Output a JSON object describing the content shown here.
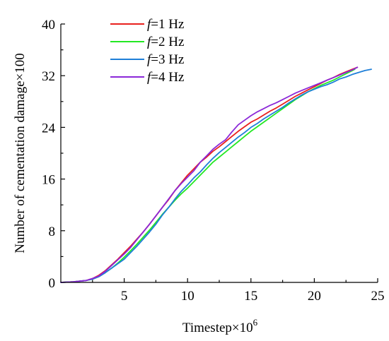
{
  "chart_data": {
    "type": "line",
    "xlabel": "Timestep×10",
    "xlabel_sup": "6",
    "ylabel": "Number of cementation damage×100",
    "xlim": [
      0,
      25
    ],
    "ylim": [
      0,
      40
    ],
    "xticks": [
      5,
      10,
      15,
      20,
      25
    ],
    "yticks": [
      0,
      8,
      16,
      24,
      32,
      40
    ],
    "grid": false,
    "legend_position": "top-left",
    "series": [
      {
        "name": "f=1 Hz",
        "legend_var": "f",
        "legend_rest": "=1 Hz",
        "color": "#e8201e",
        "x": [
          0,
          1,
          2,
          2.5,
          3,
          3.5,
          4,
          4.5,
          5,
          5.5,
          6,
          6.5,
          7,
          7.5,
          8,
          8.5,
          9,
          9.5,
          10,
          10.5,
          11,
          11.5,
          12,
          12.5,
          13,
          13.5,
          14,
          14.5,
          15,
          15.5,
          16,
          16.5,
          17,
          17.5,
          18,
          18.5,
          19,
          19.5,
          20,
          20.5,
          21,
          21.5,
          22,
          22.5,
          23,
          23.4
        ],
        "y": [
          0,
          0.1,
          0.3,
          0.6,
          1.1,
          1.8,
          2.7,
          3.6,
          4.6,
          5.6,
          6.7,
          7.8,
          9.0,
          10.3,
          11.6,
          12.8,
          14.2,
          15.4,
          16.6,
          17.6,
          18.6,
          19.4,
          20.3,
          21.0,
          21.8,
          22.6,
          23.4,
          24.1,
          24.8,
          25.3,
          25.9,
          26.5,
          27.0,
          27.6,
          28.2,
          28.8,
          29.3,
          29.8,
          30.3,
          30.8,
          31.3,
          31.7,
          32.2,
          32.6,
          33.0,
          33.3
        ]
      },
      {
        "name": "f=2 Hz",
        "legend_var": "f",
        "legend_rest": "=2 Hz",
        "color": "#23e823",
        "x": [
          0,
          1,
          2,
          2.5,
          3,
          3.5,
          4,
          4.5,
          5,
          5.5,
          6,
          6.5,
          7,
          7.5,
          8,
          8.5,
          9,
          9.5,
          10,
          10.5,
          11,
          11.5,
          12,
          12.5,
          13,
          13.5,
          14,
          14.5,
          15,
          15.5,
          16,
          16.5,
          17,
          17.5,
          18,
          18.5,
          19,
          19.5,
          20,
          20.5,
          21,
          21.5,
          22,
          22.5,
          23,
          23.2
        ],
        "y": [
          0,
          0.1,
          0.3,
          0.5,
          0.9,
          1.5,
          2.2,
          3.0,
          3.9,
          4.9,
          5.9,
          7.0,
          8.1,
          9.3,
          10.5,
          11.6,
          12.7,
          13.7,
          14.6,
          15.6,
          16.6,
          17.6,
          18.6,
          19.4,
          20.2,
          21.0,
          21.8,
          22.6,
          23.4,
          24.1,
          24.8,
          25.5,
          26.2,
          26.9,
          27.6,
          28.3,
          28.9,
          29.5,
          30.0,
          30.5,
          30.9,
          31.3,
          31.8,
          32.3,
          32.8,
          33.0
        ]
      },
      {
        "name": "f=3 Hz",
        "legend_var": "f",
        "legend_rest": "=3 Hz",
        "color": "#1f7fd8",
        "x": [
          0,
          1,
          2,
          2.5,
          3,
          3.5,
          4,
          4.5,
          5,
          5.5,
          6,
          6.5,
          7,
          7.5,
          8,
          8.5,
          9,
          9.5,
          10,
          10.5,
          11,
          11.5,
          12,
          12.5,
          13,
          13.5,
          14,
          14.5,
          15,
          15.5,
          16,
          16.5,
          17,
          17.5,
          18,
          18.5,
          19,
          19.5,
          20,
          20.5,
          21,
          21.5,
          22,
          22.5,
          23,
          23.5,
          24,
          24.5
        ],
        "y": [
          0,
          0.1,
          0.3,
          0.5,
          0.9,
          1.5,
          2.2,
          2.9,
          3.6,
          4.6,
          5.6,
          6.7,
          7.8,
          9.0,
          10.4,
          11.6,
          12.9,
          14.1,
          15.1,
          16.2,
          17.1,
          18.2,
          19.2,
          20.1,
          20.9,
          21.7,
          22.5,
          23.2,
          24.0,
          24.6,
          25.3,
          25.9,
          26.5,
          27.1,
          27.8,
          28.4,
          29.0,
          29.5,
          29.9,
          30.3,
          30.6,
          31.0,
          31.5,
          31.8,
          32.2,
          32.5,
          32.8,
          33.0
        ]
      },
      {
        "name": "f=4 Hz",
        "legend_var": "f",
        "legend_rest": "=4 Hz",
        "color": "#8b28d8",
        "x": [
          0,
          1,
          2,
          2.5,
          3,
          3.5,
          4,
          4.5,
          5,
          5.5,
          6,
          6.5,
          7,
          7.5,
          8,
          8.5,
          9,
          9.5,
          10,
          10.5,
          11,
          11.5,
          12,
          12.5,
          13,
          13.5,
          14,
          14.5,
          15,
          15.5,
          16,
          16.5,
          17,
          17.5,
          18,
          18.5,
          19,
          19.5,
          20,
          20.5,
          21,
          21.5,
          22,
          22.5,
          23,
          23.4
        ],
        "y": [
          0,
          0.1,
          0.3,
          0.6,
          1.0,
          1.7,
          2.6,
          3.5,
          4.4,
          5.4,
          6.6,
          7.8,
          9.0,
          10.3,
          11.6,
          12.9,
          14.2,
          15.3,
          16.3,
          17.3,
          18.6,
          19.6,
          20.6,
          21.4,
          22.1,
          23.3,
          24.4,
          25.1,
          25.8,
          26.4,
          26.9,
          27.4,
          27.8,
          28.3,
          28.8,
          29.3,
          29.7,
          30.1,
          30.5,
          30.9,
          31.3,
          31.7,
          32.1,
          32.5,
          32.9,
          33.3
        ]
      }
    ]
  }
}
